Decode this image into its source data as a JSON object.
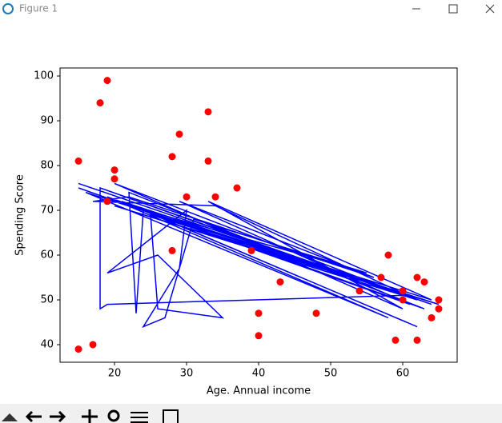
{
  "window": {
    "title": "Figure 1"
  },
  "chart_data": {
    "type": "scatter",
    "xlabel": "Age. Annual income",
    "ylabel": "Spending Score",
    "xlim": [
      12.44,
      67.56
    ],
    "ylim": [
      36.07,
      101.79
    ],
    "xticks": [
      20,
      30,
      40,
      50,
      60
    ],
    "yticks": [
      40,
      50,
      60,
      70,
      80,
      90,
      100
    ],
    "series": [
      {
        "type": "line",
        "color": "#0000ff",
        "x": [
          15,
          64,
          18,
          60,
          19,
          18,
          18,
          62,
          20,
          65,
          16,
          58,
          19,
          63,
          22,
          23,
          24,
          62,
          21,
          57,
          25,
          26,
          35,
          26,
          19,
          30,
          29,
          24,
          27,
          31,
          55,
          20,
          64,
          33,
          60,
          20,
          62,
          34,
          17,
          22,
          56,
          29,
          61,
          15
        ],
        "values": [
          76,
          49,
          75,
          51,
          49,
          48,
          75,
          50,
          71,
          49,
          74,
          46,
          73,
          48,
          74,
          47,
          70,
          44,
          72,
          53,
          69,
          48,
          46,
          60,
          56,
          70,
          57,
          44,
          46,
          68,
          56,
          72,
          50,
          72,
          48,
          76,
          50,
          71,
          72,
          73,
          55,
          72,
          49,
          75
        ]
      },
      {
        "type": "scatter",
        "color": "#ff0000",
        "x": [
          15,
          15,
          17,
          18,
          19,
          19,
          20,
          20,
          28,
          28,
          29,
          30,
          33,
          33,
          34,
          37,
          39,
          40,
          40,
          43,
          48,
          54,
          57,
          58,
          59,
          60,
          60,
          62,
          62,
          63,
          64,
          65,
          65
        ],
        "values": [
          81,
          39,
          40,
          94,
          99,
          72,
          79,
          77,
          82,
          61,
          87,
          73,
          92,
          81,
          73,
          75,
          61,
          47,
          42,
          54,
          47,
          52,
          55,
          60,
          41,
          50,
          52,
          55,
          41,
          54,
          46,
          50,
          48
        ]
      }
    ]
  }
}
